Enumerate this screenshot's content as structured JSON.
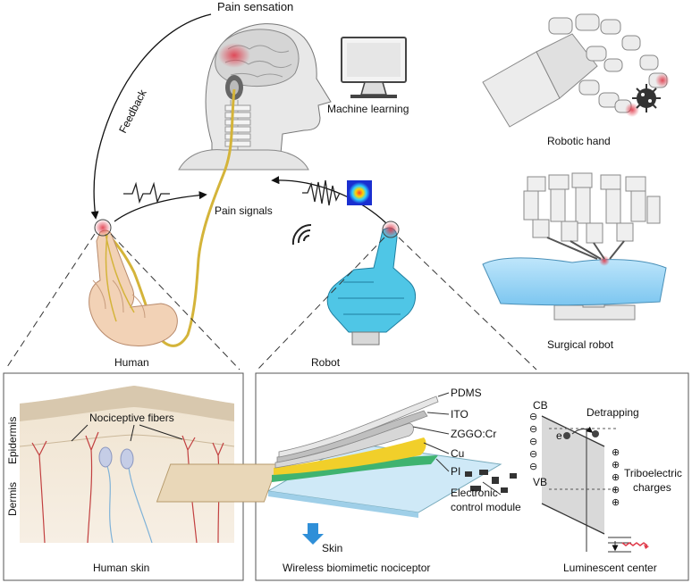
{
  "labels": {
    "pain_sensation": "Pain sensation",
    "machine_learning": "Machine learning",
    "robotic_hand": "Robotic hand",
    "feedback": "Feedback",
    "pain_signals": "Pain signals",
    "surgical_robot": "Surgical robot",
    "human": "Human",
    "robot": "Robot"
  },
  "human_skin_panel": {
    "nociceptive_fibers": "Nociceptive fibers",
    "epidermis": "Epidermis",
    "dermis": "Dermis",
    "caption": "Human skin"
  },
  "device_panel": {
    "layers": [
      "PDMS",
      "ITO",
      "ZGGO:Cr",
      "Cu",
      "PI",
      "Electronic",
      "control module"
    ],
    "skin": "Skin",
    "caption": "Wireless biomimetic nociceptor"
  },
  "band_panel": {
    "cb": "CB",
    "vb": "VB",
    "detrapping": "Detrapping",
    "electron": "e",
    "minus": "⊖",
    "plus": "⊕",
    "triboelectric_1": "Triboelectric",
    "triboelectric_2": "charges",
    "caption": "Luminescent center"
  },
  "colors": {
    "nerve": "#d4b43a",
    "robot_blue": "#4fc6e6",
    "pain_red": "#e03a4a",
    "skin_tone": "#f2d2b6"
  }
}
